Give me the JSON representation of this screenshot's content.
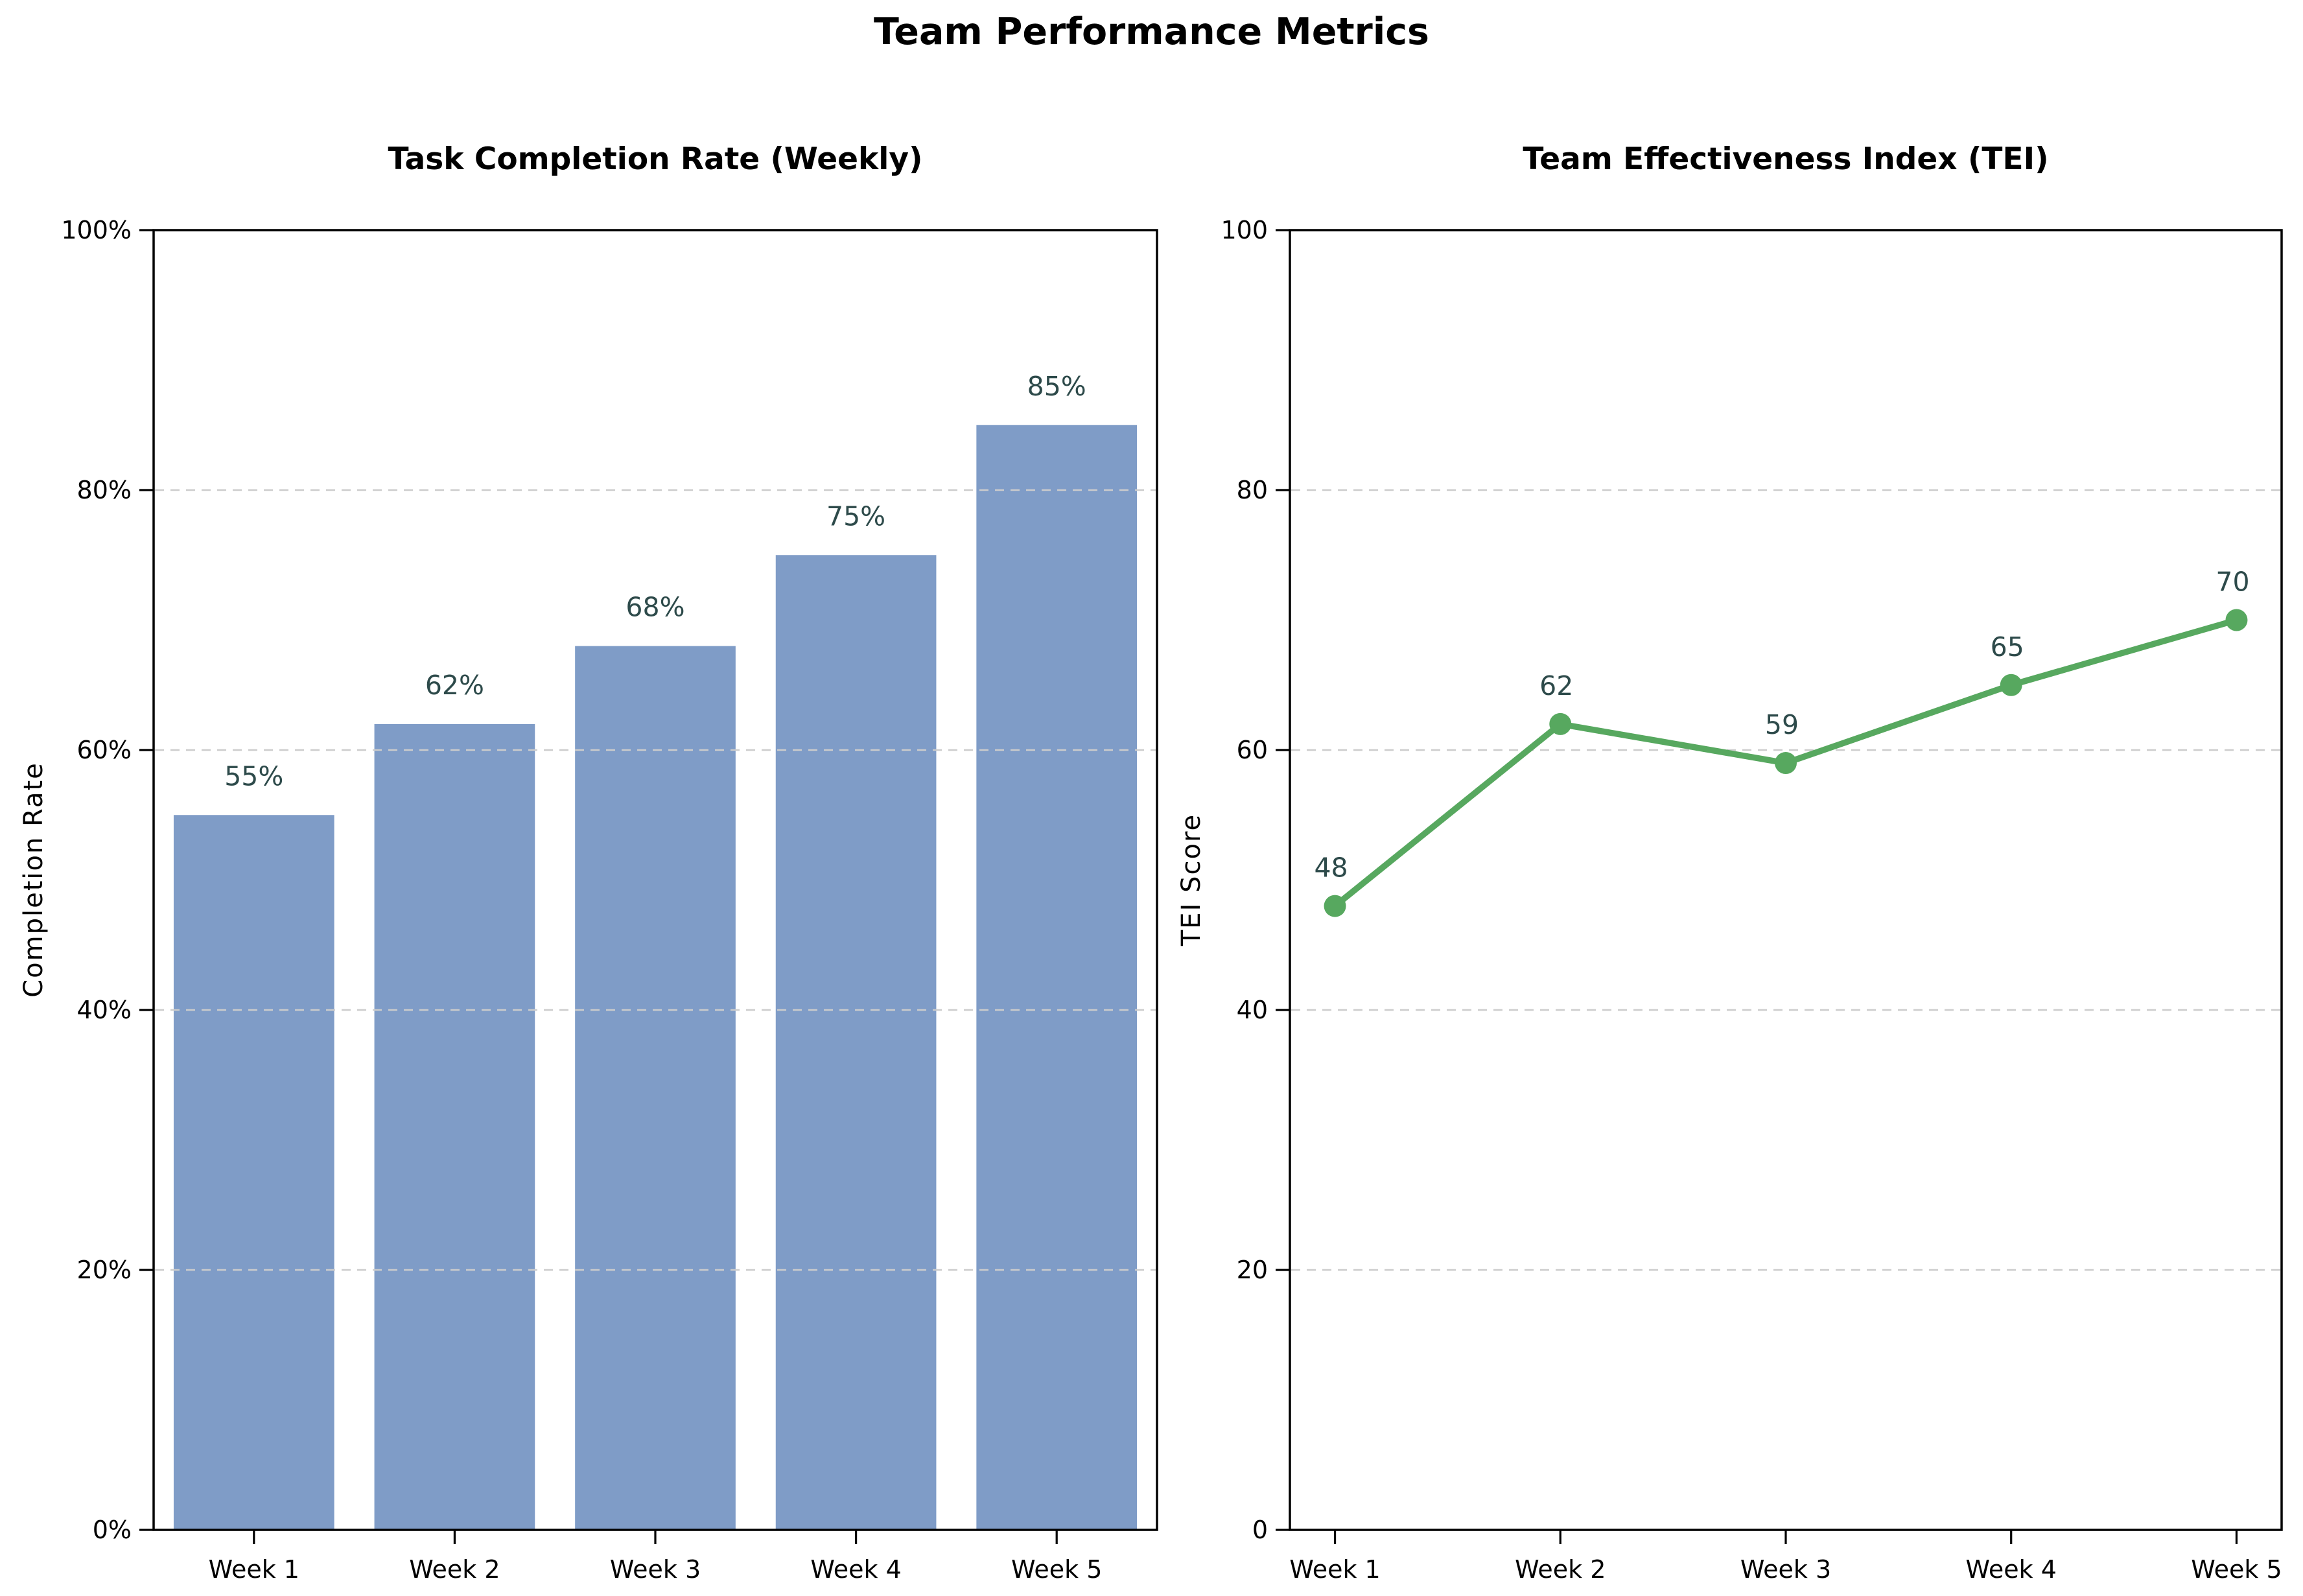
{
  "figure": {
    "title": "Team Performance Metrics",
    "background_color": "#ffffff",
    "text_color": "#000000"
  },
  "chart_data": [
    {
      "type": "bar",
      "title": "Task Completion Rate (Weekly)",
      "categories": [
        "Week 1",
        "Week 2",
        "Week 3",
        "Week 4",
        "Week 5"
      ],
      "values": [
        55,
        62,
        68,
        75,
        85
      ],
      "value_labels": [
        "55%",
        "62%",
        "68%",
        "75%",
        "85%"
      ],
      "xlabel": "",
      "ylabel": "Completion Rate",
      "ylim": [
        0,
        100
      ],
      "yticks": [
        0,
        20,
        40,
        60,
        80,
        100
      ],
      "ytick_labels": [
        "0%",
        "20%",
        "40%",
        "60%",
        "80%",
        "100%"
      ],
      "grid": "horizontal dashed at 20,40,60,80 drawn over bars",
      "legend": "none",
      "bar_color": "#7f9cc7",
      "value_label_color": "#2d4a4a",
      "grid_color": "#cccccc",
      "axis_color": "#000000"
    },
    {
      "type": "line",
      "title": "Team Effectiveness Index (TEI)",
      "categories": [
        "Week 1",
        "Week 2",
        "Week 3",
        "Week 4",
        "Week 5"
      ],
      "values": [
        48,
        62,
        59,
        65,
        70
      ],
      "value_labels": [
        "48",
        "62",
        "59",
        "65",
        "70"
      ],
      "xlabel": "",
      "ylabel": "TEI Score",
      "ylim": [
        0,
        100
      ],
      "yticks": [
        0,
        20,
        40,
        60,
        80,
        100
      ],
      "ytick_labels": [
        "0",
        "20",
        "40",
        "60",
        "80",
        "100"
      ],
      "grid": "horizontal dashed at 20,40,60,80 drawn under line",
      "legend": "none",
      "line_color": "#57a85f",
      "marker": "circle",
      "value_label_color": "#2d4a4a",
      "grid_color": "#cccccc",
      "axis_color": "#000000"
    }
  ]
}
